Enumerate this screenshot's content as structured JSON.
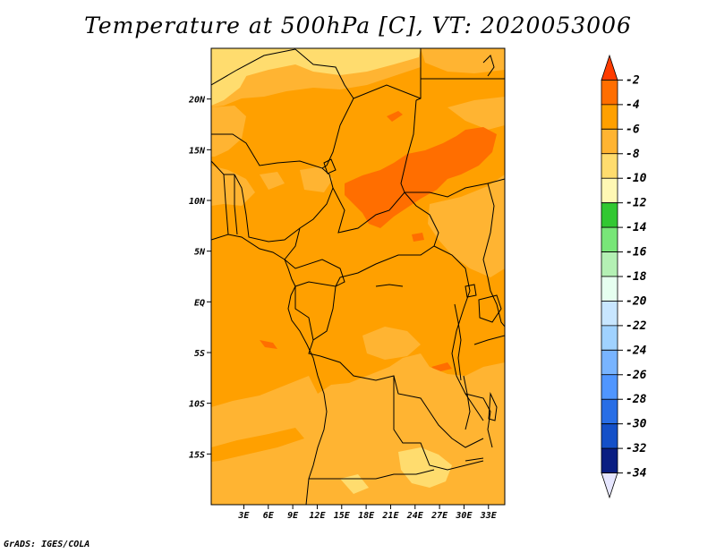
{
  "title": "Temperature at 500hPa [C], VT: 2020053006",
  "footer": "GrADS: IGES/COLA",
  "map": {
    "lon_range": [
      -1,
      35
    ],
    "lat_range": [
      -20,
      25
    ],
    "lat_ticks": [
      "20N",
      "15N",
      "10N",
      "5N",
      "EQ",
      "5S",
      "10S",
      "15S"
    ],
    "lat_values": [
      20,
      15,
      10,
      5,
      0,
      -5,
      -10,
      -15
    ],
    "lon_ticks": [
      "3E",
      "6E",
      "9E",
      "12E",
      "15E",
      "18E",
      "21E",
      "24E",
      "27E",
      "30E",
      "33E"
    ],
    "lon_values": [
      3,
      6,
      9,
      12,
      15,
      18,
      21,
      24,
      27,
      30,
      33
    ]
  },
  "colorbar": {
    "labels": [
      "-2",
      "-4",
      "-6",
      "-8",
      "-10",
      "-12",
      "-14",
      "-16",
      "-18",
      "-20",
      "-22",
      "-24",
      "-26",
      "-28",
      "-30",
      "-32",
      "-34"
    ],
    "colors": [
      "#ff3c00",
      "#ff6e00",
      "#ffa000",
      "#ffb432",
      "#ffdc6e",
      "#fff8b4",
      "#32c832",
      "#78e678",
      "#b4f0b4",
      "#e6fff0",
      "#c8e6ff",
      "#a0d2ff",
      "#78b4ff",
      "#5096ff",
      "#286ee6",
      "#1450c8",
      "#0a1e82",
      "#e6e6ff"
    ]
  }
}
